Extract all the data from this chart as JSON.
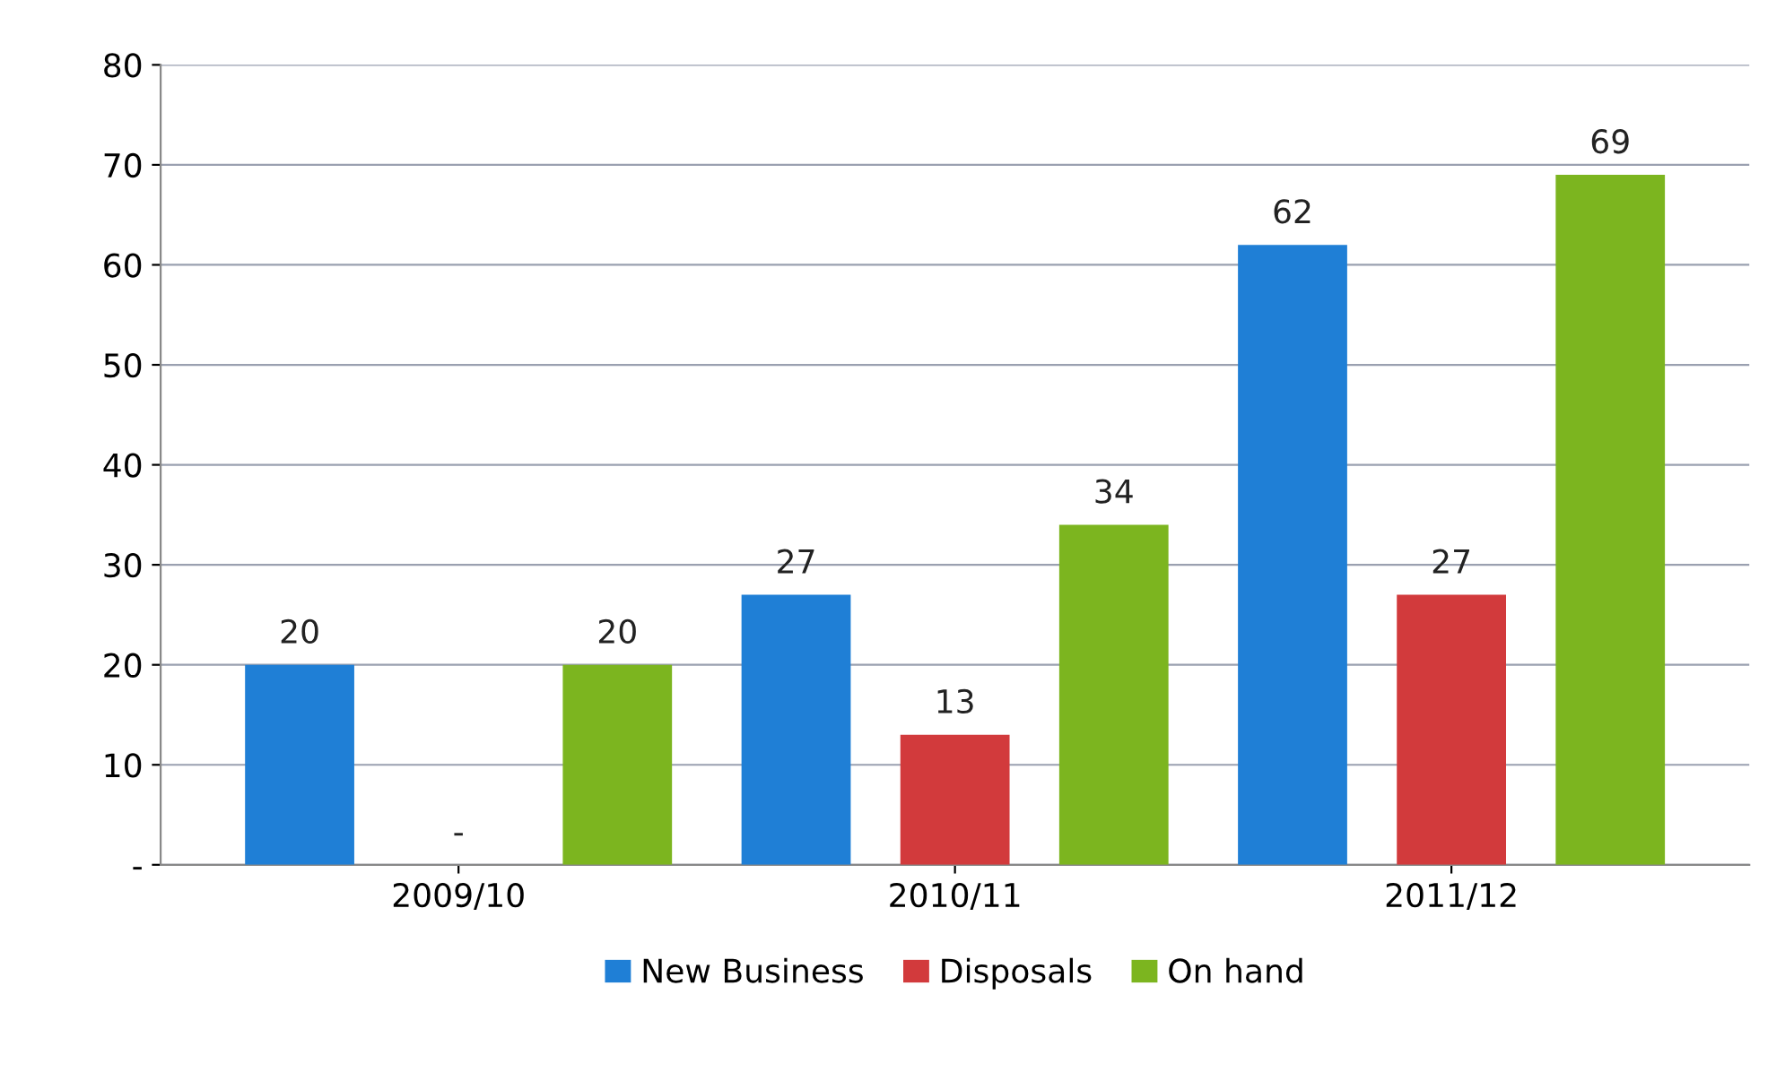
{
  "chart_data": {
    "type": "bar",
    "categories": [
      "2009/10",
      "2010/11",
      "2011/12"
    ],
    "series": [
      {
        "name": "New Business",
        "color": "#1f7fd6",
        "values": [
          20,
          27,
          62
        ],
        "value_labels": [
          "20",
          "27",
          "62"
        ]
      },
      {
        "name": "Disposals",
        "color": "#d23a3c",
        "values": [
          0,
          13,
          27
        ],
        "value_labels": [
          "-",
          "13",
          "27"
        ]
      },
      {
        "name": "On hand",
        "color": "#7cb51f",
        "values": [
          20,
          34,
          69
        ],
        "value_labels": [
          "20",
          "34",
          "69"
        ]
      }
    ],
    "ylim": [
      0,
      80
    ],
    "yticks": [
      {
        "value": 0,
        "label": "-"
      },
      10,
      20,
      30,
      40,
      50,
      60,
      70,
      80
    ],
    "grid": "y",
    "legend": "bottom"
  }
}
